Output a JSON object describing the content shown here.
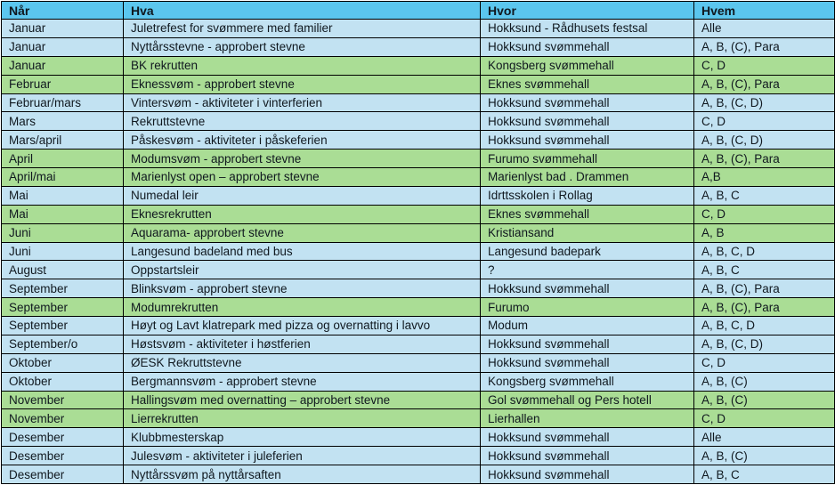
{
  "colors": {
    "header_bg": "#5bc6ee",
    "row_blue_bg": "#c2e2f2",
    "row_green_bg": "#aadd95",
    "border": "#000000",
    "text": "#10181f"
  },
  "table": {
    "columns": [
      {
        "key": "nar",
        "label": "Når"
      },
      {
        "key": "hva",
        "label": "Hva"
      },
      {
        "key": "hvor",
        "label": "Hvor"
      },
      {
        "key": "hvem",
        "label": "Hvem"
      }
    ],
    "rows": [
      {
        "nar": "Januar",
        "hva": "Juletrefest for svømmere med familier",
        "hvor": "Hokksund - Rådhusets festsal",
        "hvem": "Alle",
        "color": "blue"
      },
      {
        "nar": "Januar",
        "hva": "Nyttårsstevne - approbert stevne",
        "hvor": "Hokksund svømmehall",
        "hvem": "A, B, (C), Para",
        "color": "blue"
      },
      {
        "nar": "Januar",
        "hva": "BK rekrutten",
        "hvor": "Kongsberg svømmehall",
        "hvem": "C, D",
        "color": "green"
      },
      {
        "nar": "Februar",
        "hva": "Eknessvøm - approbert stevne",
        "hvor": "Eknes svømmehall",
        "hvem": "A, B, (C), Para",
        "color": "green"
      },
      {
        "nar": "Februar/mars",
        "hva": "Vintersvøm - aktiviteter i vinterferien",
        "hvor": "Hokksund svømmehall",
        "hvem": "A, B, (C, D)",
        "color": "blue"
      },
      {
        "nar": "Mars",
        "hva": "Rekruttstevne",
        "hvor": "Hokksund svømmehall",
        "hvem": "C, D",
        "color": "blue"
      },
      {
        "nar": "Mars/april",
        "hva": "Påskesvøm - aktiviteter i påskeferien",
        "hvor": "Hokksund svømmehall",
        "hvem": "A, B, (C, D)",
        "color": "blue"
      },
      {
        "nar": "April",
        "hva": "Modumsvøm - approbert stevne",
        "hvor": "Furumo svømmehall",
        "hvem": "A, B, (C), Para",
        "color": "green"
      },
      {
        "nar": "April/mai",
        "hva": "Marienlyst open – approbert stevne",
        "hvor": "Marienlyst bad . Drammen",
        "hvem": "A,B",
        "color": "green"
      },
      {
        "nar": "Mai",
        "hva": "Numedal leir",
        "hvor": "Idrttsskolen i Rollag",
        "hvem": "A, B, C",
        "color": "blue"
      },
      {
        "nar": "Mai",
        "hva": "Eknesrekrutten",
        "hvor": "Eknes svømmehall",
        "hvem": "C, D",
        "color": "green"
      },
      {
        "nar": "Juni",
        "hva": "Aquarama- approbert stevne",
        "hvor": "Kristiansand",
        "hvem": "A, B",
        "color": "green"
      },
      {
        "nar": "Juni",
        "hva": "Langesund badeland med bus",
        "hvor": "Langesund badepark",
        "hvem": "A, B, C, D",
        "color": "blue"
      },
      {
        "nar": "August",
        "hva": "Oppstartsleir",
        "hvor": "?",
        "hvem": "A, B, C",
        "color": "blue"
      },
      {
        "nar": "September",
        "hva": "Blinksvøm - approbert stevne",
        "hvor": "Hokksund svømmehall",
        "hvem": "A, B, (C), Para",
        "color": "blue"
      },
      {
        "nar": "September",
        "hva": "Modumrekrutten",
        "hvor": "Furumo",
        "hvem": "A, B, (C), Para",
        "color": "green"
      },
      {
        "nar": "September",
        "hva": "Høyt og Lavt klatrepark med pizza og overnatting i lavvo",
        "hvor": "Modum",
        "hvem": "A, B, C, D",
        "color": "blue"
      },
      {
        "nar": "September/o",
        "hva": "Høstsvøm - aktiviteter i høstferien",
        "hvor": "Hokksund svømmehall",
        "hvem": "A, B, (C, D)",
        "color": "blue"
      },
      {
        "nar": "Oktober",
        "hva": "ØESK Rekruttstevne",
        "hvor": "Hokksund svømmehall",
        "hvem": "C, D",
        "color": "blue"
      },
      {
        "nar": "Oktober",
        "hva": "Bergmannsvøm - approbert stevne",
        "hvor": "Kongsberg svømmehall",
        "hvem": "A, B, (C)",
        "color": "blue"
      },
      {
        "nar": "November",
        "hva": "Hallingsvøm med overnatting – approbert stevne",
        "hvor": "Gol svømmehall og Pers hotell",
        "hvem": "A, B, (C)",
        "color": "green"
      },
      {
        "nar": "November",
        "hva": "Lierrekrutten",
        "hvor": "Lierhallen",
        "hvem": "C, D",
        "color": "green"
      },
      {
        "nar": "Desember",
        "hva": "Klubbmesterskap",
        "hvor": "Hokksund svømmehall",
        "hvem": "Alle",
        "color": "blue"
      },
      {
        "nar": "Desember",
        "hva": "Julesvøm - aktiviteter i juleferien",
        "hvor": "Hokksund svømmehall",
        "hvem": "A, B, (C)",
        "color": "blue"
      },
      {
        "nar": "Desember",
        "hva": "Nyttårssvøm på nyttårsaften",
        "hvor": "Hokksund svømmehall",
        "hvem": "A, B, C",
        "color": "blue"
      }
    ]
  }
}
